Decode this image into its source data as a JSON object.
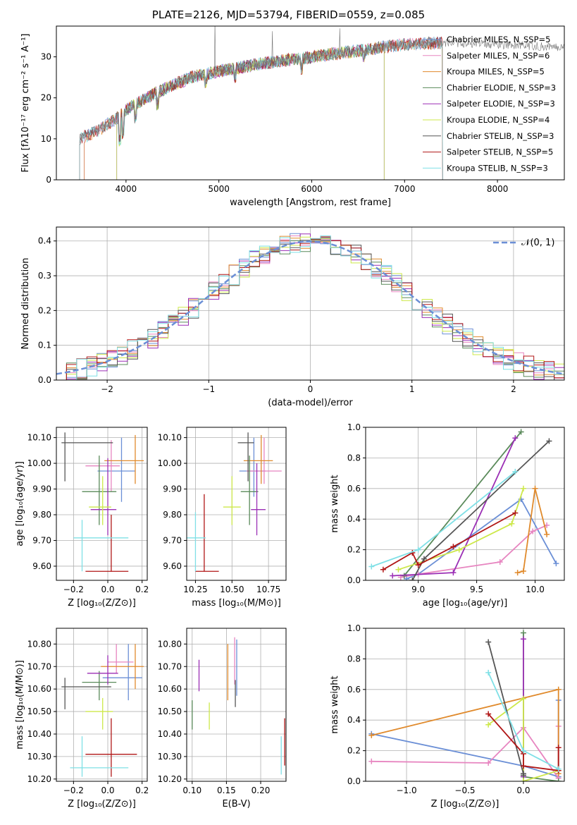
{
  "title": "PLATE=2126, MJD=53794, FIBERID=0559, z=0.085",
  "colors": {
    "Chabrier MILES": "#6b8fd6",
    "Salpeter MILES": "#e785c0",
    "Kroupa MILES": "#e08a2c",
    "Chabrier ELODIE": "#5a8a5a",
    "Salpeter ELODIE": "#9b2fb5",
    "Kroupa ELODIE": "#cde84a",
    "Chabrier STELIB": "#555555",
    "Salpeter STELIB": "#b01616",
    "Kroupa STELIB": "#7fe0e6"
  },
  "chart_data": [
    {
      "type": "line",
      "name": "spectrum",
      "xlabel": "wavelength [Angstrom, rest frame]",
      "ylabel": "Flux [fλ10⁻¹⁷ erg cm⁻² s⁻¹ A⁻¹]",
      "xlim": [
        3250,
        8720
      ],
      "ylim": [
        0,
        37.5
      ],
      "xticks": [
        4000,
        5000,
        6000,
        7000,
        8000
      ],
      "yticks": [
        0,
        10,
        20,
        30
      ],
      "legend_placement": "right",
      "grid": false,
      "legend": [
        {
          "model": "Chabrier MILES",
          "label": "Chabrier MILES, N_SSP=5"
        },
        {
          "model": "Salpeter MILES",
          "label": "Salpeter MILES, N_SSP=6"
        },
        {
          "model": "Kroupa MILES",
          "label": "Kroupa MILES, N_SSP=5"
        },
        {
          "model": "Chabrier ELODIE",
          "label": "Chabrier ELODIE, N_SSP=3"
        },
        {
          "model": "Salpeter ELODIE",
          "label": "Salpeter ELODIE, N_SSP=3"
        },
        {
          "model": "Kroupa ELODIE",
          "label": "Kroupa ELODIE, N_SSP=4"
        },
        {
          "model": "Chabrier STELIB",
          "label": "Chabrier STELIB, N_SSP=3"
        },
        {
          "model": "Salpeter STELIB",
          "label": "Salpeter STELIB, N_SSP=5"
        },
        {
          "model": "Kroupa STELIB",
          "label": "Kroupa STELIB, N_SSP=3"
        }
      ],
      "continuum": [
        [
          3500,
          10
        ],
        [
          3700,
          12
        ],
        [
          3900,
          15
        ],
        [
          4000,
          17
        ],
        [
          4300,
          21
        ],
        [
          4700,
          25
        ],
        [
          5000,
          26.5
        ],
        [
          5500,
          28.5
        ],
        [
          6000,
          30
        ],
        [
          6500,
          31.5
        ],
        [
          7000,
          33
        ],
        [
          7500,
          33.5
        ],
        [
          8000,
          33
        ],
        [
          8500,
          32.5
        ]
      ],
      "model_ranges": [
        {
          "model": "Chabrier MILES",
          "x": [
            3550,
            7410
          ]
        },
        {
          "model": "Salpeter MILES",
          "x": [
            3550,
            7410
          ]
        },
        {
          "model": "Kroupa MILES",
          "x": [
            3550,
            7410
          ]
        },
        {
          "model": "Chabrier ELODIE",
          "x": [
            3900,
            6780
          ]
        },
        {
          "model": "Salpeter ELODIE",
          "x": [
            3900,
            6780
          ]
        },
        {
          "model": "Kroupa ELODIE",
          "x": [
            3900,
            6780
          ]
        },
        {
          "model": "Chabrier STELIB",
          "x": [
            3500,
            7410
          ]
        },
        {
          "model": "Salpeter STELIB",
          "x": [
            3500,
            7410
          ]
        },
        {
          "model": "Kroupa STELIB",
          "x": [
            3500,
            7410
          ]
        }
      ]
    },
    {
      "type": "histogram",
      "name": "residuals",
      "xlabel": "(data-model)/error",
      "ylabel": "Normed distribution",
      "xlim": [
        -2.5,
        2.5
      ],
      "ylim": [
        0,
        0.44
      ],
      "xticks": [
        -2,
        -1,
        0,
        1,
        2
      ],
      "yticks": [
        0.0,
        0.1,
        0.2,
        0.3,
        0.4
      ],
      "grid": true,
      "legend_placement": "top-right",
      "reference_label": "𝒩(0, 1)",
      "bin_width": 0.1,
      "bin_start": -2.5
    },
    {
      "type": "scatter",
      "name": "age-vs-Z",
      "xlabel": "Z [log₁₀(Z/Z⊙)]",
      "ylabel": "age  [log₁₀(age/yr)]",
      "xlim": [
        -0.3,
        0.23
      ],
      "ylim": [
        9.545,
        10.14
      ],
      "xticks": [
        -0.2,
        0.0,
        0.2
      ],
      "yticks": [
        9.6,
        9.7,
        9.8,
        9.9,
        10.0,
        10.1
      ],
      "grid": true,
      "points": [
        {
          "model": "Chabrier MILES",
          "x": 0.08,
          "y": 9.97,
          "xerr": [
            0.14,
            0.08
          ],
          "yerr": [
            0.12,
            0.13
          ]
        },
        {
          "model": "Salpeter MILES",
          "x": 0.02,
          "y": 9.99,
          "xerr": [
            0.15,
            0.05
          ],
          "yerr": [
            0.1,
            0.1
          ]
        },
        {
          "model": "Kroupa MILES",
          "x": 0.16,
          "y": 10.01,
          "xerr": [
            0.18,
            0.05
          ],
          "yerr": [
            0.09,
            0.1
          ]
        },
        {
          "model": "Chabrier ELODIE",
          "x": -0.05,
          "y": 9.89,
          "xerr": [
            0.1,
            0.1
          ],
          "yerr": [
            0.13,
            0.14
          ]
        },
        {
          "model": "Salpeter ELODIE",
          "x": 0.0,
          "y": 9.82,
          "xerr": [
            0.1,
            0.05
          ],
          "yerr": [
            0.1,
            0.2
          ]
        },
        {
          "model": "Kroupa ELODIE",
          "x": -0.03,
          "y": 9.83,
          "xerr": [
            0.08,
            0.05
          ],
          "yerr": [
            0.07,
            0.12
          ]
        },
        {
          "model": "Chabrier STELIB",
          "x": -0.25,
          "y": 10.08,
          "xerr": [
            0.02,
            0.28
          ],
          "yerr": [
            0.15,
            0.04
          ]
        },
        {
          "model": "Salpeter STELIB",
          "x": 0.02,
          "y": 9.58,
          "xerr": [
            0.15,
            0.1
          ],
          "yerr": [
            0.0,
            0.22
          ]
        },
        {
          "model": "Kroupa STELIB",
          "x": -0.15,
          "y": 9.71,
          "xerr": [
            0.05,
            0.27
          ],
          "yerr": [
            0.13,
            0.07
          ]
        }
      ]
    },
    {
      "type": "scatter",
      "name": "age-vs-mass",
      "xlabel": "mass [log₁₀(M/M⊙)]",
      "xlim": [
        10.19,
        10.87
      ],
      "ylim": [
        9.545,
        10.14
      ],
      "xticks": [
        10.25,
        10.5,
        10.75
      ],
      "yticks": [
        9.6,
        9.7,
        9.8,
        9.9,
        10.0,
        10.1
      ],
      "grid": true,
      "points": [
        {
          "model": "Chabrier MILES",
          "x": 10.65,
          "y": 9.97,
          "xerr": [
            0.1,
            0.08
          ],
          "yerr": [
            0.1,
            0.13
          ]
        },
        {
          "model": "Salpeter MILES",
          "x": 10.72,
          "y": 9.97,
          "xerr": [
            0.12,
            0.12
          ],
          "yerr": [
            0.05,
            0.13
          ]
        },
        {
          "model": "Kroupa MILES",
          "x": 10.7,
          "y": 10.01,
          "xerr": [
            0.12,
            0.08
          ],
          "yerr": [
            0.09,
            0.1
          ]
        },
        {
          "model": "Chabrier ELODIE",
          "x": 10.62,
          "y": 9.89,
          "xerr": [
            0.06,
            0.06
          ],
          "yerr": [
            0.13,
            0.14
          ]
        },
        {
          "model": "Salpeter ELODIE",
          "x": 10.67,
          "y": 9.82,
          "xerr": [
            0.04,
            0.06
          ],
          "yerr": [
            0.1,
            0.18
          ]
        },
        {
          "model": "Kroupa ELODIE",
          "x": 10.5,
          "y": 9.83,
          "xerr": [
            0.06,
            0.06
          ],
          "yerr": [
            0.07,
            0.12
          ]
        },
        {
          "model": "Chabrier STELIB",
          "x": 10.61,
          "y": 10.08,
          "xerr": [
            0.07,
            0.04
          ],
          "yerr": [
            0.15,
            0.04
          ]
        },
        {
          "model": "Salpeter STELIB",
          "x": 10.31,
          "y": 9.58,
          "xerr": [
            0.06,
            0.1
          ],
          "yerr": [
            0.0,
            0.3
          ]
        },
        {
          "model": "Kroupa STELIB",
          "x": 10.25,
          "y": 9.71,
          "xerr": [
            0.06,
            0.07
          ],
          "yerr": [
            0.13,
            0.1
          ]
        }
      ]
    },
    {
      "type": "line",
      "name": "weight-vs-age",
      "xlabel": "age  [log₁₀(age/yr)]",
      "ylabel": "mass weight",
      "xlim": [
        8.55,
        10.25
      ],
      "ylim": [
        0.0,
        1.0
      ],
      "xticks": [
        9.0,
        9.5,
        10.0
      ],
      "yticks": [
        0.0,
        0.2,
        0.4,
        0.6,
        0.8,
        1.0
      ],
      "grid": true,
      "series": [
        {
          "model": "Chabrier MILES",
          "x": [
            8.9,
            9.0,
            9.88,
            10.18
          ],
          "y": [
            0.01,
            0.04,
            0.53,
            0.11
          ]
        },
        {
          "model": "Salpeter MILES",
          "x": [
            8.85,
            9.0,
            9.7,
            9.98,
            10.1
          ],
          "y": [
            0.02,
            0.04,
            0.12,
            0.32,
            0.36
          ]
        },
        {
          "model": "Kroupa MILES",
          "x": [
            9.85,
            9.9,
            10.0,
            10.1
          ],
          "y": [
            0.05,
            0.06,
            0.6,
            0.3
          ]
        },
        {
          "model": "Chabrier ELODIE",
          "x": [
            8.88,
            9.88
          ],
          "y": [
            0.03,
            0.97
          ]
        },
        {
          "model": "Salpeter ELODIE",
          "x": [
            8.78,
            9.3,
            9.83
          ],
          "y": [
            0.03,
            0.05,
            0.93
          ]
        },
        {
          "model": "Kroupa ELODIE",
          "x": [
            8.83,
            9.35,
            9.8,
            9.9
          ],
          "y": [
            0.07,
            0.2,
            0.37,
            0.6
          ]
        },
        {
          "model": "Chabrier STELIB",
          "x": [
            8.95,
            9.05,
            10.12
          ],
          "y": [
            0.0,
            0.14,
            0.91
          ]
        },
        {
          "model": "Salpeter STELIB",
          "x": [
            8.7,
            8.95,
            9.0,
            9.3,
            9.83
          ],
          "y": [
            0.07,
            0.18,
            0.1,
            0.22,
            0.44
          ]
        },
        {
          "model": "Kroupa STELIB",
          "x": [
            8.6,
            9.0,
            9.83
          ],
          "y": [
            0.09,
            0.2,
            0.71
          ]
        }
      ]
    },
    {
      "type": "scatter",
      "name": "mass-vs-Z",
      "xlabel": "Z [log₁₀(Z/Z⊙)]",
      "ylabel": "mass [log₁₀(M/M⊙)]",
      "xlim": [
        -0.3,
        0.23
      ],
      "ylim": [
        10.19,
        10.87
      ],
      "xticks": [
        -0.2,
        0.0,
        0.2
      ],
      "yticks": [
        10.2,
        10.3,
        10.4,
        10.5,
        10.6,
        10.7,
        10.8
      ],
      "grid": true,
      "points": [
        {
          "model": "Chabrier MILES",
          "x": 0.12,
          "y": 10.65,
          "xerr": [
            0.15,
            0.08
          ],
          "yerr": [
            0.1,
            0.15
          ]
        },
        {
          "model": "Salpeter MILES",
          "x": 0.05,
          "y": 10.72,
          "xerr": [
            0.05,
            0.1
          ],
          "yerr": [
            0.05,
            0.08
          ]
        },
        {
          "model": "Kroupa MILES",
          "x": 0.16,
          "y": 10.7,
          "xerr": [
            0.2,
            0.05
          ],
          "yerr": [
            0.1,
            0.1
          ]
        },
        {
          "model": "Chabrier ELODIE",
          "x": -0.05,
          "y": 10.63,
          "xerr": [
            0.1,
            0.1
          ],
          "yerr": [
            0.08,
            0.05
          ]
        },
        {
          "model": "Salpeter ELODIE",
          "x": 0.0,
          "y": 10.67,
          "xerr": [
            0.12,
            0.06
          ],
          "yerr": [
            0.05,
            0.08
          ]
        },
        {
          "model": "Kroupa ELODIE",
          "x": -0.03,
          "y": 10.5,
          "xerr": [
            0.1,
            0.06
          ],
          "yerr": [
            0.08,
            0.06
          ]
        },
        {
          "model": "Chabrier STELIB",
          "x": -0.25,
          "y": 10.61,
          "xerr": [
            0.02,
            0.27
          ],
          "yerr": [
            0.1,
            0.04
          ]
        },
        {
          "model": "Salpeter STELIB",
          "x": 0.02,
          "y": 10.31,
          "xerr": [
            0.15,
            0.15
          ],
          "yerr": [
            0.1,
            0.16
          ]
        },
        {
          "model": "Kroupa STELIB",
          "x": -0.15,
          "y": 10.25,
          "xerr": [
            0.07,
            0.27
          ],
          "yerr": [
            0.04,
            0.14
          ]
        }
      ]
    },
    {
      "type": "scatter",
      "name": "mass-vs-EBV",
      "xlabel": "E(B-V)",
      "xlim": [
        0.092,
        0.237
      ],
      "ylim": [
        10.19,
        10.87
      ],
      "xticks": [
        0.1,
        0.15,
        0.2
      ],
      "yticks": [
        10.2,
        10.3,
        10.4,
        10.5,
        10.6,
        10.7,
        10.8
      ],
      "grid": true,
      "points": [
        {
          "model": "Chabrier MILES",
          "x": 0.165,
          "y": 10.7,
          "yerr": [
            0.13,
            0.12
          ]
        },
        {
          "model": "Salpeter MILES",
          "x": 0.162,
          "y": 10.74,
          "yerr": [
            0.12,
            0.09
          ]
        },
        {
          "model": "Kroupa MILES",
          "x": 0.152,
          "y": 10.65,
          "yerr": [
            0.1,
            0.15
          ]
        },
        {
          "model": "Chabrier ELODIE",
          "x": 0.1,
          "y": 10.5,
          "yerr": [
            0.08,
            0.05
          ]
        },
        {
          "model": "Salpeter ELODIE",
          "x": 0.11,
          "y": 10.66,
          "yerr": [
            0.07,
            0.07
          ]
        },
        {
          "model": "Kroupa ELODIE",
          "x": 0.125,
          "y": 10.48,
          "yerr": [
            0.06,
            0.06
          ]
        },
        {
          "model": "Chabrier STELIB",
          "x": 0.163,
          "y": 10.59,
          "yerr": [
            0.07,
            0.05
          ]
        },
        {
          "model": "Salpeter STELIB",
          "x": 0.235,
          "y": 10.37,
          "yerr": [
            0.11,
            0.1
          ]
        },
        {
          "model": "Kroupa STELIB",
          "x": 0.23,
          "y": 10.3,
          "yerr": [
            0.08,
            0.09
          ]
        }
      ]
    },
    {
      "type": "line",
      "name": "weight-vs-Z",
      "xlabel": "Z [log₁₀(Z/Z⊙)]",
      "ylabel": "mass weight",
      "xlim": [
        -1.35,
        0.35
      ],
      "ylim": [
        0.0,
        1.0
      ],
      "xticks": [
        -1.0,
        -0.5,
        0.0
      ],
      "yticks": [
        0.0,
        0.2,
        0.4,
        0.6,
        0.8,
        1.0
      ],
      "grid": true,
      "series": [
        {
          "model": "Chabrier MILES",
          "x": [
            -1.3,
            0.0,
            0.3,
            0.3
          ],
          "y": [
            0.31,
            0.1,
            0.03,
            0.53
          ]
        },
        {
          "model": "Salpeter MILES",
          "x": [
            -1.3,
            -0.3,
            0.0,
            0.3,
            0.3
          ],
          "y": [
            0.13,
            0.12,
            0.35,
            0.02,
            0.36
          ]
        },
        {
          "model": "Kroupa MILES",
          "x": [
            -1.3,
            0.3,
            0.3
          ],
          "y": [
            0.3,
            0.6,
            0.05
          ]
        },
        {
          "model": "Chabrier ELODIE",
          "x": [
            0.0,
            0.0,
            0.3
          ],
          "y": [
            0.97,
            0.03,
            0.0
          ]
        },
        {
          "model": "Salpeter ELODIE",
          "x": [
            0.0,
            0.0
          ],
          "y": [
            0.03,
            0.93
          ]
        },
        {
          "model": "Kroupa ELODIE",
          "x": [
            -0.3,
            0.0,
            0.0,
            0.3
          ],
          "y": [
            0.37,
            0.54,
            0.0,
            0.07
          ]
        },
        {
          "model": "Chabrier STELIB",
          "x": [
            -0.3,
            0.0,
            0.0
          ],
          "y": [
            0.91,
            0.05,
            0.04
          ]
        },
        {
          "model": "Salpeter STELIB",
          "x": [
            -0.3,
            0.0,
            0.0,
            0.3,
            0.3
          ],
          "y": [
            0.44,
            0.18,
            0.1,
            0.07,
            0.22
          ]
        },
        {
          "model": "Kroupa STELIB",
          "x": [
            -0.3,
            0.0,
            0.3
          ],
          "y": [
            0.71,
            0.2,
            0.08
          ]
        }
      ]
    }
  ]
}
